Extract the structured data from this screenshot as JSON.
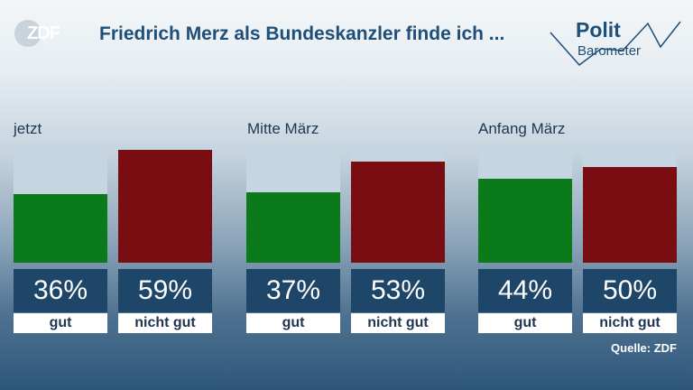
{
  "brand": {
    "zdf": "ZDF",
    "polit": "Polit",
    "barometer": "Barometer"
  },
  "title": "Friedrich Merz als Bundeskanzler finde ich ...",
  "source": "Quelle: ZDF",
  "colors": {
    "gut": "#0a7a1a",
    "nicht_gut": "#7a0d12",
    "remainder": "#c5d5e1",
    "value_box": "#1e4668",
    "title": "#1f4e79"
  },
  "chart_data": {
    "type": "bar",
    "unit": "%",
    "ylim": [
      0,
      62
    ],
    "groups": [
      {
        "label": "jetzt",
        "bars": [
          {
            "category": "gut",
            "value": 36,
            "label": "36%"
          },
          {
            "category": "nicht gut",
            "value": 59,
            "label": "59%"
          }
        ]
      },
      {
        "label": "Mitte März",
        "bars": [
          {
            "category": "gut",
            "value": 37,
            "label": "37%"
          },
          {
            "category": "nicht gut",
            "value": 53,
            "label": "53%"
          }
        ]
      },
      {
        "label": "Anfang März",
        "bars": [
          {
            "category": "gut",
            "value": 44,
            "label": "44%"
          },
          {
            "category": "nicht gut",
            "value": 50,
            "label": "50%"
          }
        ]
      }
    ]
  }
}
